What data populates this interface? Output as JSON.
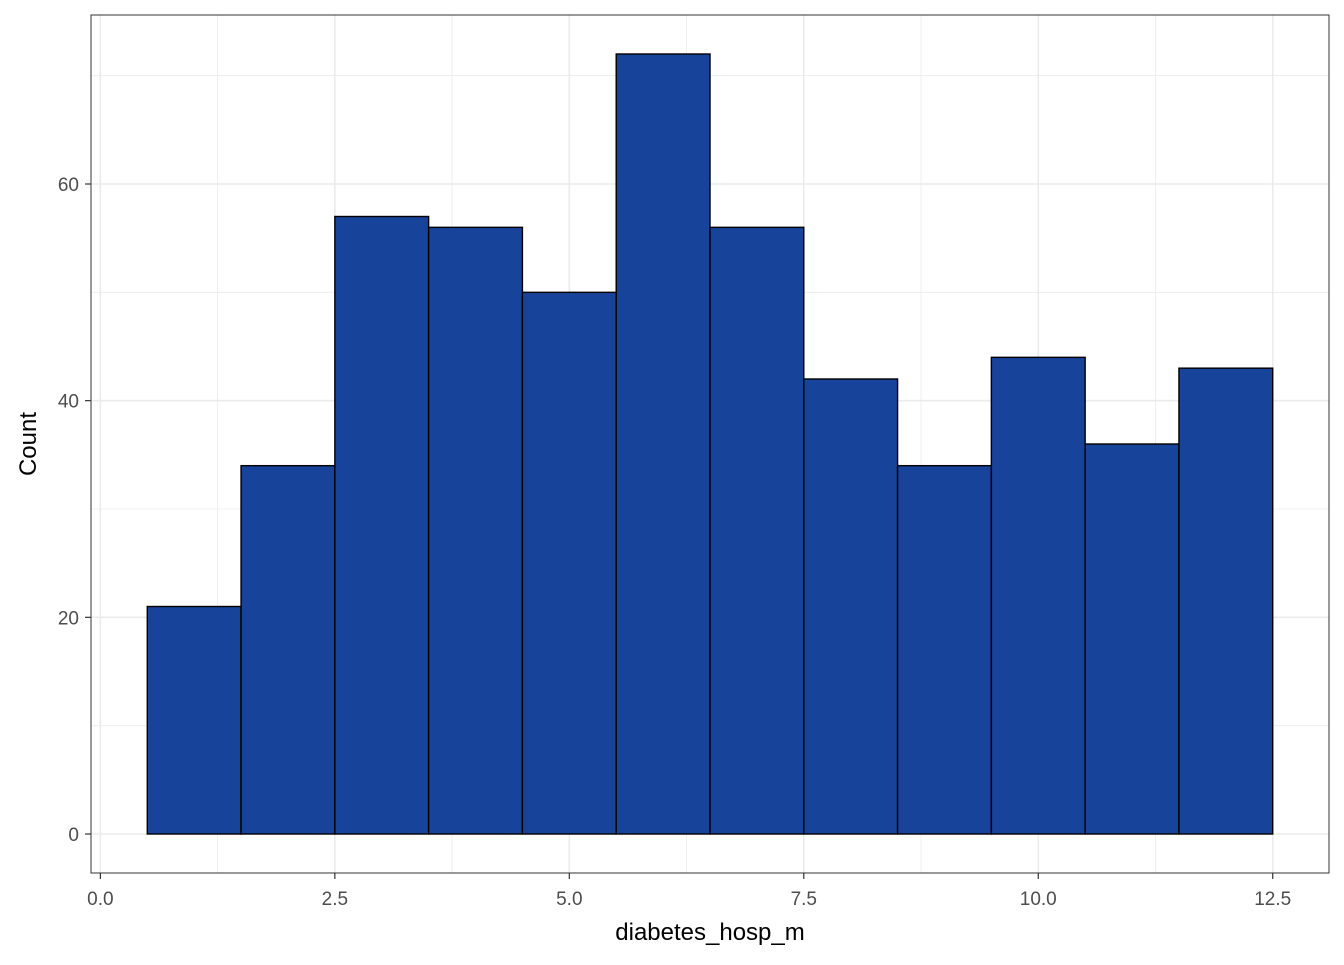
{
  "chart_data": {
    "type": "bar",
    "bins": [
      {
        "x_start": 0.5,
        "x_end": 1.5,
        "count": 21
      },
      {
        "x_start": 1.5,
        "x_end": 2.5,
        "count": 34
      },
      {
        "x_start": 2.5,
        "x_end": 3.5,
        "count": 57
      },
      {
        "x_start": 3.5,
        "x_end": 4.5,
        "count": 56
      },
      {
        "x_start": 4.5,
        "x_end": 5.5,
        "count": 50
      },
      {
        "x_start": 5.5,
        "x_end": 6.5,
        "count": 72
      },
      {
        "x_start": 6.5,
        "x_end": 7.5,
        "count": 56
      },
      {
        "x_start": 7.5,
        "x_end": 8.5,
        "count": 42
      },
      {
        "x_start": 8.5,
        "x_end": 9.5,
        "count": 34
      },
      {
        "x_start": 9.5,
        "x_end": 10.5,
        "count": 44
      },
      {
        "x_start": 10.5,
        "x_end": 11.5,
        "count": 36
      },
      {
        "x_start": 11.5,
        "x_end": 12.5,
        "count": 43
      }
    ],
    "xlabel": "diabetes_hosp_m",
    "ylabel": "Count",
    "xlim": [
      -0.1,
      13.1
    ],
    "ylim": [
      -3.6,
      75.6
    ],
    "x_ticks": [
      0.0,
      2.5,
      5.0,
      7.5,
      10.0,
      12.5
    ],
    "x_tick_labels": [
      "0.0",
      "2.5",
      "5.0",
      "7.5",
      "10.0",
      "12.5"
    ],
    "y_ticks": [
      0,
      20,
      40,
      60
    ],
    "y_tick_labels": [
      "0",
      "20",
      "40",
      "60"
    ],
    "grid": true,
    "bar_fill": "#18439A",
    "bar_outline": "#000000",
    "grid_color": "#EBEBEB",
    "panel_border_color": "#333333"
  }
}
